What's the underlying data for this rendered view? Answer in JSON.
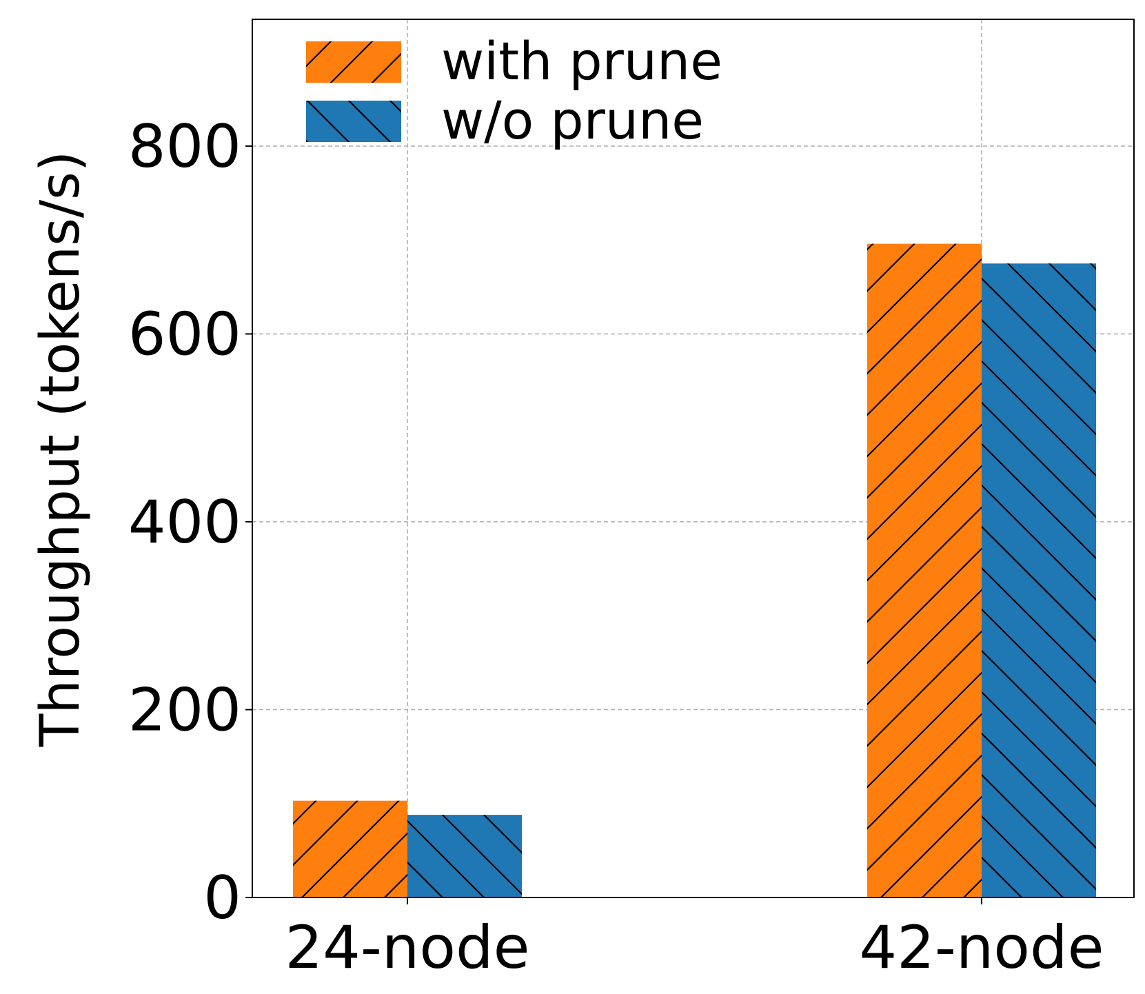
{
  "chart_data": {
    "type": "bar",
    "categories": [
      "24-node",
      "42-node"
    ],
    "series": [
      {
        "name": "with prune",
        "values": [
          103,
          696
        ],
        "color": "#ff7f0e",
        "hatch": "forward-diagonal"
      },
      {
        "name": "w/o prune",
        "values": [
          88,
          675
        ],
        "color": "#1f77b4",
        "hatch": "back-diagonal"
      }
    ],
    "xlabel": "",
    "ylabel": "Throughput (tokens/s)",
    "ylim": [
      0,
      935
    ],
    "yticks": [
      0,
      200,
      400,
      600,
      800
    ],
    "grid": true,
    "legend_position": "top-left"
  }
}
